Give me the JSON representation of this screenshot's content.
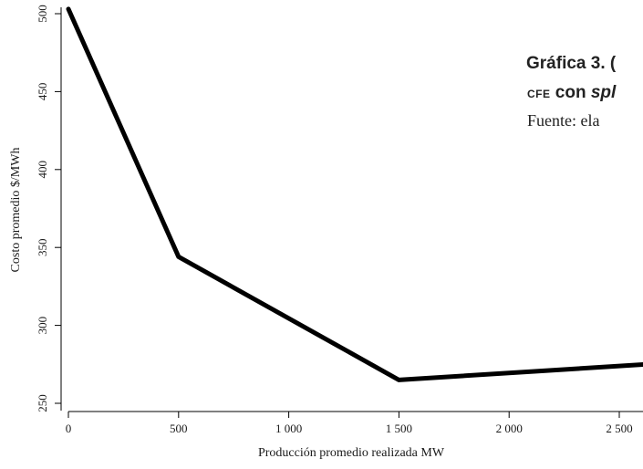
{
  "chart_data": {
    "type": "line",
    "xlabel": "Producción promedio realizada MW",
    "ylabel": "Costo promedio $/MWh",
    "xlim": [
      -60,
      2620
    ],
    "ylim": [
      245,
      505
    ],
    "x_ticks": [
      0,
      500,
      1000,
      1500,
      2000,
      2500
    ],
    "x_tick_labels": [
      "0",
      "500",
      "1 000",
      "1 500",
      "2 000",
      "2 500"
    ],
    "y_ticks": [
      250,
      300,
      350,
      400,
      450,
      500
    ],
    "y_tick_labels": [
      "250",
      "300",
      "350",
      "400",
      "450",
      "500"
    ],
    "series": [
      {
        "x": [
          0,
          500,
          1500,
          2620
        ],
        "y": [
          503,
          344,
          265,
          275
        ]
      }
    ],
    "line_color": "#000000",
    "grid": false
  },
  "caption": {
    "title_start": "Gráfica 3. (",
    "line2_small": "CFE",
    "line2_text": " con ",
    "line2_italic": "spl",
    "source": "Fuente: ela"
  }
}
